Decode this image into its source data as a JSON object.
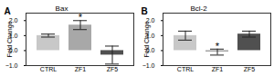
{
  "chart_data": [
    {
      "type": "bar",
      "panel": "A",
      "title": "Bax",
      "y_label": "Fold Change",
      "categories": [
        "CTRL",
        "ZF1",
        "ZF5"
      ],
      "values": [
        1.0,
        1.7,
        -0.3
      ],
      "errors": [
        0.1,
        0.3,
        0.6
      ],
      "colors": [
        "#c8c8c8",
        "#a8a8a8",
        "#505050"
      ],
      "ylim": [
        -1,
        2.5
      ],
      "yticks": [
        -1,
        0,
        1,
        2
      ],
      "annotations": [
        {
          "category": "ZF1",
          "text": "*"
        }
      ]
    },
    {
      "type": "bar",
      "panel": "B",
      "title": "Bcl-2",
      "y_label": "Fold Change",
      "categories": [
        "CTRL",
        "ZF1",
        "ZF5"
      ],
      "values": [
        1.0,
        -0.1,
        1.1
      ],
      "errors": [
        0.3,
        0.2,
        0.2
      ],
      "colors": [
        "#c8c8c8",
        "#a8a8a8",
        "#505050"
      ],
      "ylim": [
        -1,
        2.5
      ],
      "yticks": [
        -1,
        0,
        1,
        2
      ],
      "annotations": [
        {
          "category": "ZF1",
          "text": "*"
        }
      ]
    }
  ]
}
